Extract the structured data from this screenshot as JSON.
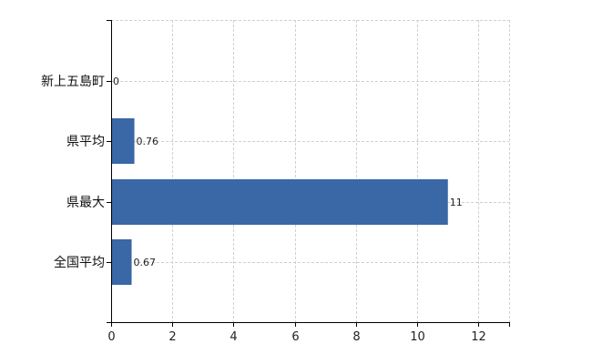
{
  "chart_data": {
    "type": "bar",
    "orientation": "horizontal",
    "categories": [
      "新上五島町",
      "県平均",
      "県最大",
      "全国平均"
    ],
    "values": [
      0,
      0.76,
      11,
      0.67
    ],
    "data_labels": [
      "0",
      "0.76",
      "11",
      "0.67"
    ],
    "xlim": [
      0,
      13
    ],
    "x_ticks": [
      0,
      2,
      4,
      6,
      8,
      10,
      12
    ],
    "grid": true,
    "bar_color": "#3a67a5"
  }
}
